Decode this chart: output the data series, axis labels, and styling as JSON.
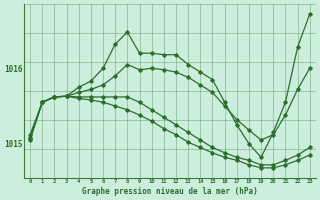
{
  "background_color": "#cceedd",
  "grid_color": "#3a7a3a",
  "line_color": "#2d6e2d",
  "xlabel": "Graphe pression niveau de la mer (hPa)",
  "ytick_labels": [
    "1015",
    "1016"
  ],
  "ytick_vals": [
    1015.0,
    1016.0
  ],
  "xticks": [
    0,
    1,
    2,
    3,
    4,
    5,
    6,
    7,
    8,
    9,
    10,
    11,
    12,
    13,
    14,
    15,
    16,
    17,
    18,
    19,
    20,
    21,
    22,
    23
  ],
  "xlim": [
    -0.5,
    23.5
  ],
  "ylim": [
    1014.55,
    1016.85
  ],
  "series": [
    {
      "x": [
        0,
        1,
        2,
        3,
        4,
        5,
        6,
        7,
        8,
        9,
        10,
        11,
        12,
        13,
        14,
        15,
        16,
        17,
        18,
        19,
        20,
        21,
        22,
        23
      ],
      "y": [
        1015.08,
        1015.55,
        1015.62,
        1015.63,
        1015.75,
        1015.83,
        1016.0,
        1016.32,
        1016.48,
        1016.2,
        1016.2,
        1016.18,
        1016.18,
        1016.05,
        1015.95,
        1015.85,
        1015.55,
        1015.25,
        1015.0,
        1014.82,
        1015.15,
        1015.55,
        1016.28,
        1016.72
      ]
    },
    {
      "x": [
        0,
        1,
        2,
        3,
        4,
        5,
        6,
        7,
        8,
        9,
        10,
        11,
        12,
        13,
        14,
        15,
        16,
        17,
        18,
        19,
        20,
        21,
        22,
        23
      ],
      "y": [
        1015.12,
        1015.55,
        1015.62,
        1015.63,
        1015.68,
        1015.72,
        1015.78,
        1015.9,
        1016.05,
        1015.98,
        1016.0,
        1015.98,
        1015.95,
        1015.88,
        1015.78,
        1015.68,
        1015.5,
        1015.32,
        1015.18,
        1015.05,
        1015.12,
        1015.38,
        1015.72,
        1016.0
      ]
    },
    {
      "x": [
        0,
        1,
        2,
        3,
        4,
        5,
        6,
        7,
        8,
        9,
        10,
        11,
        12,
        13,
        14,
        15,
        16,
        17,
        18,
        19,
        20,
        21,
        22,
        23
      ],
      "y": [
        1015.08,
        1015.55,
        1015.62,
        1015.63,
        1015.62,
        1015.62,
        1015.62,
        1015.62,
        1015.62,
        1015.55,
        1015.45,
        1015.35,
        1015.25,
        1015.15,
        1015.05,
        1014.95,
        1014.88,
        1014.82,
        1014.78,
        1014.72,
        1014.72,
        1014.78,
        1014.85,
        1014.95
      ]
    },
    {
      "x": [
        0,
        1,
        2,
        3,
        4,
        5,
        6,
        7,
        8,
        9,
        10,
        11,
        12,
        13,
        14,
        15,
        16,
        17,
        18,
        19,
        20,
        21,
        22,
        23
      ],
      "y": [
        1015.05,
        1015.55,
        1015.62,
        1015.63,
        1015.6,
        1015.58,
        1015.55,
        1015.5,
        1015.45,
        1015.38,
        1015.3,
        1015.2,
        1015.12,
        1015.02,
        1014.95,
        1014.88,
        1014.82,
        1014.78,
        1014.72,
        1014.68,
        1014.68,
        1014.72,
        1014.78,
        1014.85
      ]
    }
  ]
}
